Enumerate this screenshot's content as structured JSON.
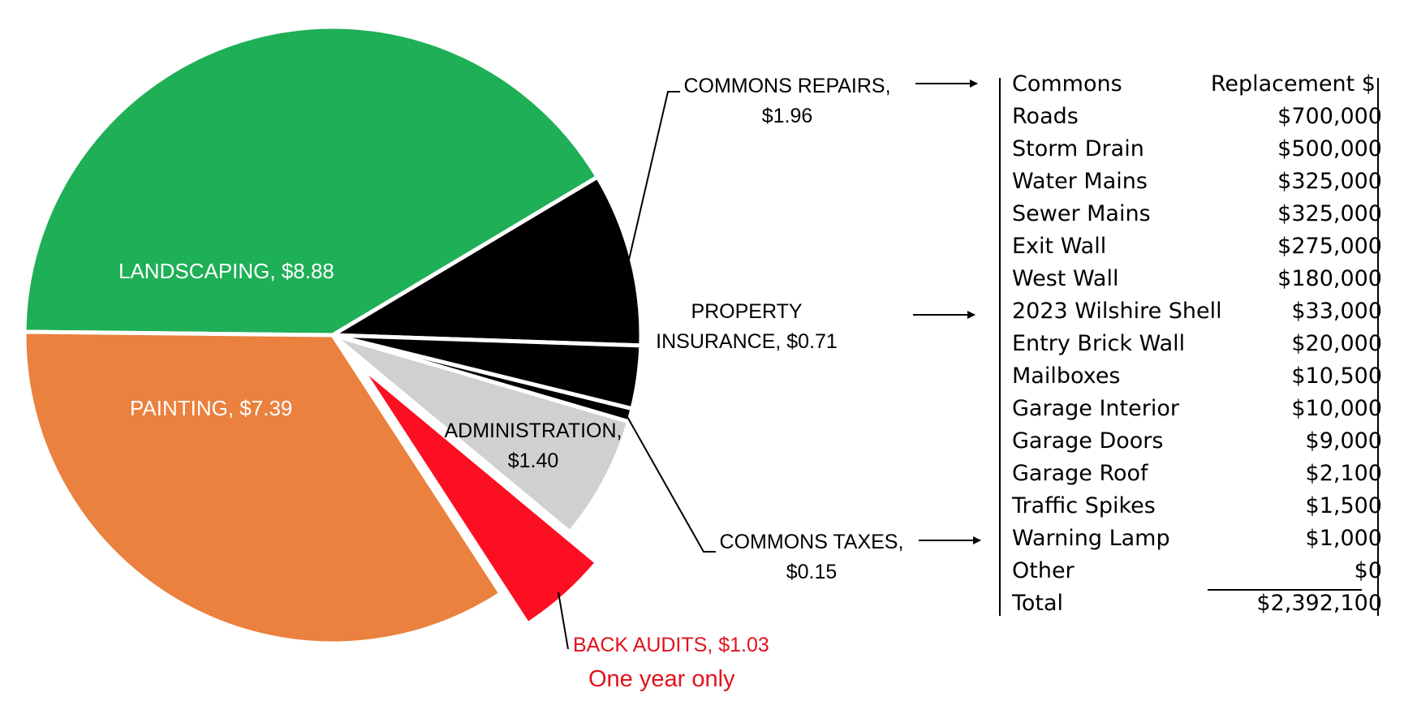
{
  "chart_data": {
    "type": "pie",
    "slices": [
      {
        "key": "landscaping",
        "label": "LANDSCAPING, $8.88",
        "value": 8.88,
        "color": "#1faf57",
        "label_color": "#ffffff"
      },
      {
        "key": "commons_repairs",
        "label": "COMMONS REPAIRS, $1.96",
        "value": 1.96,
        "color": "#000000",
        "label_color": "#000000"
      },
      {
        "key": "property_insurance",
        "label": "PROPERTY INSURANCE, $0.71",
        "value": 0.71,
        "color": "#000000",
        "label_color": "#000000"
      },
      {
        "key": "commons_taxes",
        "label": "COMMONS TAXES, $0.15",
        "value": 0.15,
        "color": "#000000",
        "label_color": "#000000"
      },
      {
        "key": "administration",
        "label": "ADMINISTRATION, $1.40",
        "value": 1.4,
        "color": "#d0d0d0",
        "label_color": "#000000"
      },
      {
        "key": "back_audits",
        "label": "BACK AUDITS, $1.03",
        "value": 1.03,
        "color": "#fc0f22",
        "label_color": "#e3121c",
        "exploded": true
      },
      {
        "key": "painting",
        "label": "PAINTING, $7.39",
        "value": 7.39,
        "color": "#ea813e",
        "label_color": "#ffffff"
      }
    ],
    "labels": {
      "landscaping": "LANDSCAPING, $8.88",
      "painting": "PAINTING, $7.39",
      "administration_1": "ADMINISTRATION,",
      "administration_2": "$1.40",
      "commons_repairs_1": "COMMONS REPAIRS,",
      "commons_repairs_2": "$1.96",
      "property_insurance_1": "PROPERTY",
      "property_insurance_2": "INSURANCE, $0.71",
      "commons_taxes_1": "COMMONS TAXES,",
      "commons_taxes_2": "$0.15",
      "back_audits": "BACK AUDITS, $1.03",
      "back_audits_note": "One year only"
    },
    "table": {
      "columns": [
        "Commons",
        "Replacement $"
      ],
      "rows": [
        {
          "name": "Roads",
          "value": "$700,000"
        },
        {
          "name": "Storm Drain",
          "value": "$500,000"
        },
        {
          "name": "Water Mains",
          "value": "$325,000"
        },
        {
          "name": "Sewer Mains",
          "value": "$325,000"
        },
        {
          "name": "Exit Wall",
          "value": "$275,000"
        },
        {
          "name": "West Wall",
          "value": "$180,000"
        },
        {
          "name": "2023 Wilshire Shell",
          "value": "$33,000"
        },
        {
          "name": "Entry Brick Wall",
          "value": "$20,000"
        },
        {
          "name": "Mailboxes",
          "value": "$10,500"
        },
        {
          "name": "Garage Interior",
          "value": "$10,000"
        },
        {
          "name": "Garage Doors",
          "value": "$9,000"
        },
        {
          "name": "Garage Roof",
          "value": "$2,100"
        },
        {
          "name": "Traffic Spikes",
          "value": "$1,500"
        },
        {
          "name": "Warning Lamp",
          "value": "$1,000"
        },
        {
          "name": "Other",
          "value": "$0"
        }
      ],
      "total": {
        "name": "Total",
        "value": "$2,392,100"
      }
    }
  }
}
